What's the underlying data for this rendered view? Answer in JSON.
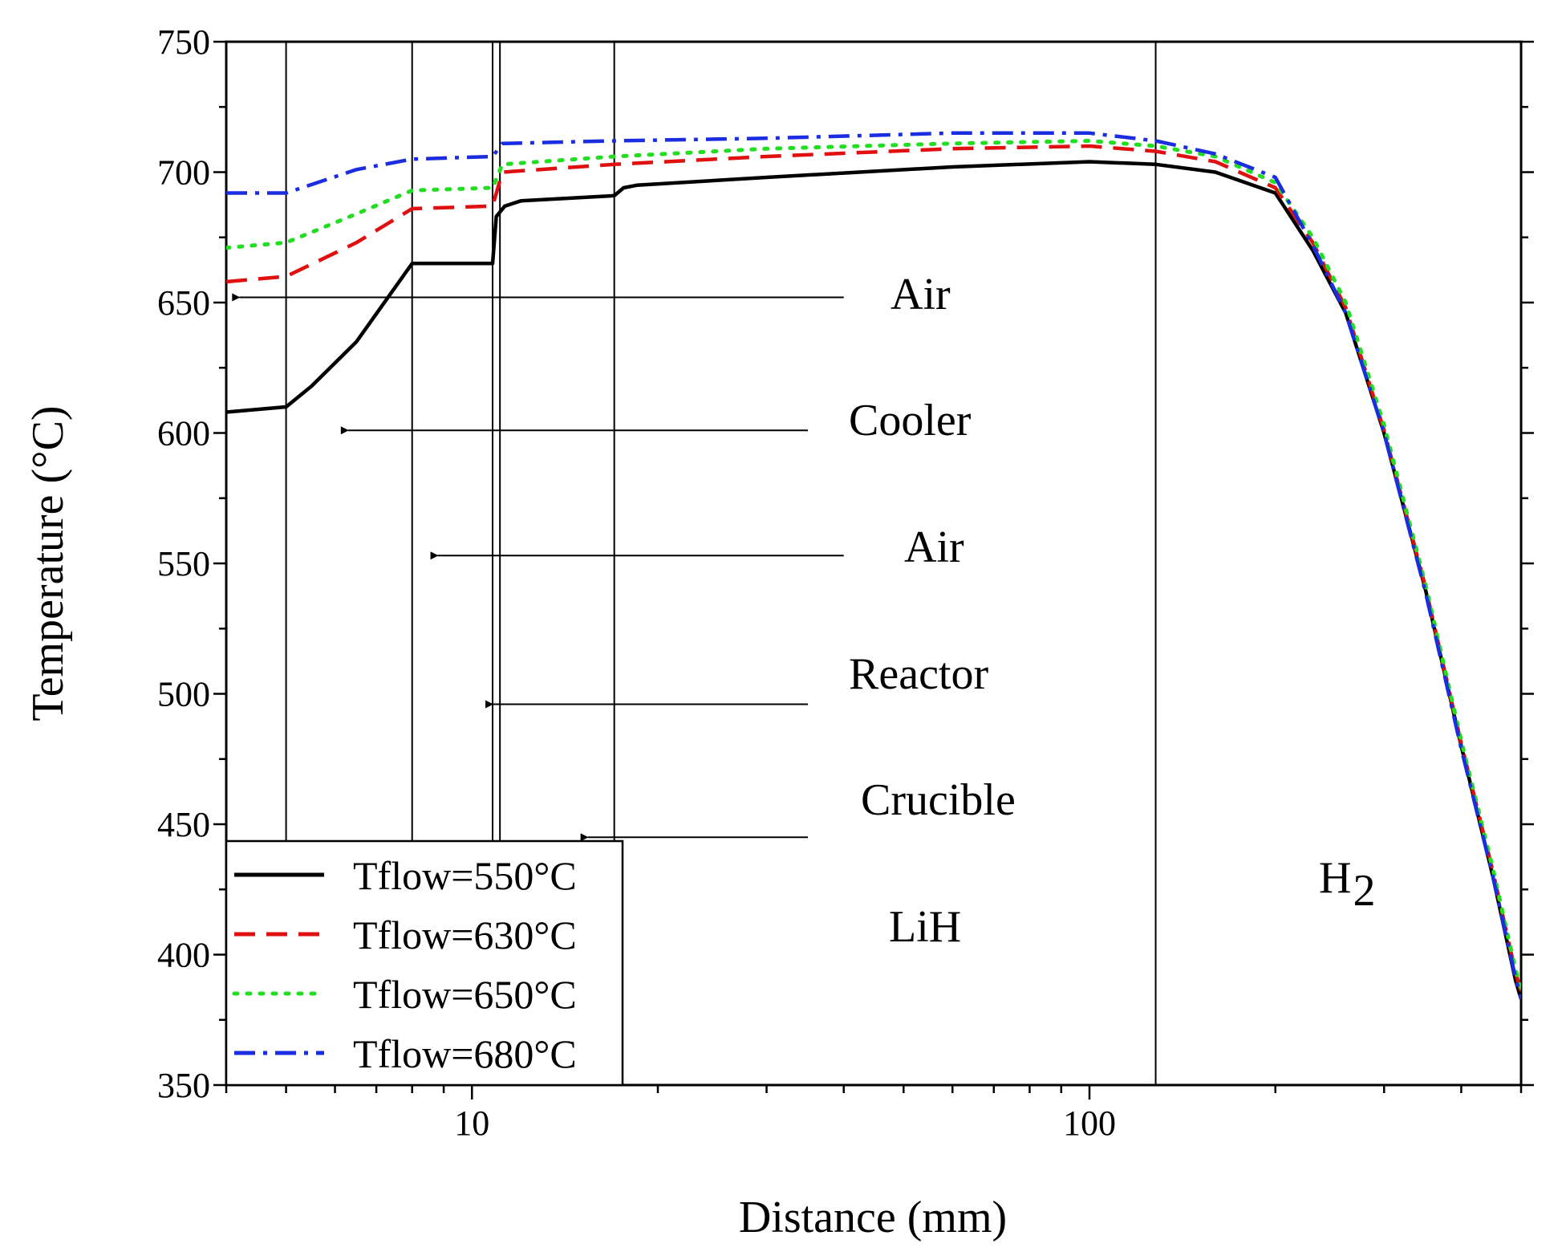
{
  "chart_data": {
    "type": "line",
    "xscale": "log",
    "xlabel": "Distance (mm)",
    "ylabel": "Temperature (°C)",
    "xlim": [
      4,
      500
    ],
    "ylim": [
      350,
      750
    ],
    "xticks": [
      {
        "value": 10,
        "label": "10"
      },
      {
        "value": 100,
        "label": "100"
      }
    ],
    "yticks": [
      {
        "value": 350,
        "label": "350"
      },
      {
        "value": 400,
        "label": "400"
      },
      {
        "value": 450,
        "label": "450"
      },
      {
        "value": 500,
        "label": "500"
      },
      {
        "value": 550,
        "label": "550"
      },
      {
        "value": 600,
        "label": "600"
      },
      {
        "value": 650,
        "label": "650"
      },
      {
        "value": 700,
        "label": "700"
      },
      {
        "value": 750,
        "label": "750"
      }
    ],
    "boundaries": [
      5,
      8,
      10.8,
      11.1,
      17,
      128
    ],
    "series": [
      {
        "name": "Tflow=550°C",
        "color": "#000000",
        "style": "solid",
        "points": [
          [
            4,
            608
          ],
          [
            5,
            610
          ],
          [
            5.5,
            618
          ],
          [
            6.5,
            635
          ],
          [
            8,
            665
          ],
          [
            10.8,
            665
          ],
          [
            10.95,
            683
          ],
          [
            11.3,
            687
          ],
          [
            12,
            689
          ],
          [
            17,
            691
          ],
          [
            17.6,
            694
          ],
          [
            18.5,
            695
          ],
          [
            30,
            698
          ],
          [
            60,
            702
          ],
          [
            100,
            704
          ],
          [
            128,
            703
          ],
          [
            160,
            700
          ],
          [
            200,
            692
          ],
          [
            230,
            670
          ],
          [
            260,
            646
          ],
          [
            300,
            600
          ],
          [
            350,
            540
          ],
          [
            400,
            480
          ],
          [
            450,
            430
          ],
          [
            490,
            390
          ],
          [
            500,
            383
          ]
        ]
      },
      {
        "name": "Tflow=630°C",
        "color": "#e01010",
        "style": "dashed",
        "points": [
          [
            4,
            658
          ],
          [
            5,
            660
          ],
          [
            6.5,
            673
          ],
          [
            8,
            686
          ],
          [
            10.8,
            687
          ],
          [
            11.2,
            700
          ],
          [
            17,
            703
          ],
          [
            30,
            706
          ],
          [
            60,
            709
          ],
          [
            100,
            710
          ],
          [
            128,
            708
          ],
          [
            160,
            704
          ],
          [
            200,
            694
          ],
          [
            230,
            673
          ],
          [
            260,
            648
          ],
          [
            300,
            601
          ],
          [
            350,
            541
          ],
          [
            400,
            481
          ],
          [
            450,
            432
          ],
          [
            490,
            393
          ],
          [
            500,
            386
          ]
        ]
      },
      {
        "name": "Tflow=650°C",
        "color": "#22dd22",
        "style": "dotted",
        "points": [
          [
            4,
            671
          ],
          [
            5,
            673
          ],
          [
            6.5,
            684
          ],
          [
            8,
            693
          ],
          [
            10.8,
            694
          ],
          [
            11.2,
            703
          ],
          [
            17,
            706
          ],
          [
            30,
            709
          ],
          [
            60,
            711
          ],
          [
            100,
            712
          ],
          [
            128,
            710
          ],
          [
            160,
            706
          ],
          [
            200,
            696
          ],
          [
            230,
            675
          ],
          [
            260,
            650
          ],
          [
            300,
            603
          ],
          [
            350,
            542
          ],
          [
            400,
            482
          ],
          [
            450,
            433
          ],
          [
            490,
            394
          ],
          [
            500,
            387
          ]
        ]
      },
      {
        "name": "Tflow=680°C",
        "color": "#1a2de0",
        "style": "dashdot",
        "points": [
          [
            4,
            692
          ],
          [
            5,
            692
          ],
          [
            6.5,
            701
          ],
          [
            8,
            705
          ],
          [
            10.8,
            706
          ],
          [
            11.2,
            711
          ],
          [
            17,
            712
          ],
          [
            30,
            713
          ],
          [
            60,
            715
          ],
          [
            100,
            715
          ],
          [
            128,
            712
          ],
          [
            160,
            707
          ],
          [
            200,
            698
          ],
          [
            230,
            672
          ],
          [
            260,
            646
          ],
          [
            300,
            600
          ],
          [
            350,
            539
          ],
          [
            400,
            479
          ],
          [
            450,
            430
          ],
          [
            490,
            391
          ],
          [
            500,
            383
          ]
        ]
      }
    ],
    "annotations": [
      {
        "text": "Air",
        "arrow_from_x": 40,
        "arrow_to_x": 4.2,
        "y": 652
      },
      {
        "text": "Cooler",
        "arrow_from_x": 35,
        "arrow_to_x": 6.3,
        "y": 601
      },
      {
        "text": "Air",
        "arrow_from_x": 40,
        "arrow_to_x": 8.8,
        "y": 553
      },
      {
        "text": "Reactor",
        "arrow_from_x": 35,
        "arrow_to_x": 10.8,
        "y": 496
      },
      {
        "text": "Crucible",
        "arrow_from_x": 35,
        "arrow_to_x": 15.4,
        "y": 445
      },
      {
        "text": "LiH",
        "y": 412
      },
      {
        "text": "H",
        "subscript": "2",
        "y": 423
      }
    ],
    "legend": "bottom-left"
  }
}
